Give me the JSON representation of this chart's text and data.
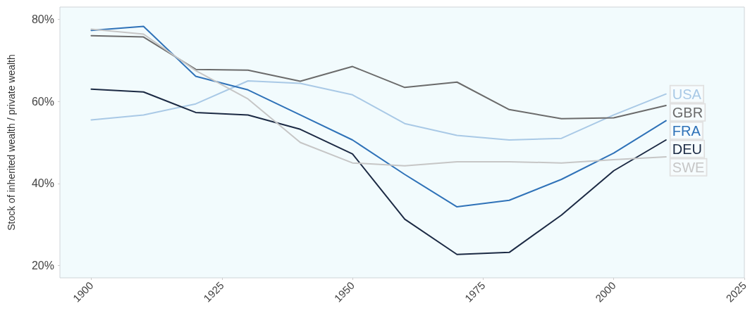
{
  "chart_data": {
    "type": "line",
    "ylabel": "Stock of inherited wealth / private wealth",
    "x": [
      1900,
      1910,
      1920,
      1930,
      1940,
      1950,
      1960,
      1970,
      1980,
      1990,
      2000,
      2010
    ],
    "series": [
      {
        "name": "USA",
        "color": "#a9c9e6",
        "values": [
          55.5,
          56.7,
          59.4,
          65,
          64.4,
          61.6,
          54.6,
          51.7,
          50.6,
          51,
          56.7,
          61.8
        ]
      },
      {
        "name": "GBR",
        "color": "#6b6b6b",
        "values": [
          76,
          75.7,
          67.8,
          67.6,
          64.9,
          68.5,
          63.4,
          64.7,
          58,
          55.8,
          56,
          59
        ]
      },
      {
        "name": "FRA",
        "color": "#2f72b8",
        "values": [
          77.3,
          78.3,
          66.1,
          62.8,
          56.7,
          50.6,
          42.2,
          34.3,
          35.9,
          41,
          47.4,
          55.3
        ]
      },
      {
        "name": "DEU",
        "color": "#1c2a44",
        "values": [
          63,
          62.3,
          57.3,
          56.7,
          53.2,
          47.2,
          31.3,
          22.7,
          23.2,
          32.3,
          43.1,
          50.6
        ]
      },
      {
        "name": "SWE",
        "color": "#c6c6c6",
        "values": [
          77.6,
          76.4,
          67.5,
          60.6,
          50,
          45,
          44.3,
          45.3,
          45.3,
          45,
          45.8,
          46.5
        ]
      }
    ],
    "xlim": [
      1894,
      2025
    ],
    "xticks": [
      1900,
      1925,
      1950,
      1975,
      2000,
      2025
    ],
    "ylim": [
      17,
      83
    ],
    "yticks": [
      {
        "value": 20,
        "label": "20%"
      },
      {
        "value": 40,
        "label": "40%"
      },
      {
        "value": 60,
        "label": "60%"
      },
      {
        "value": 80,
        "label": "80%"
      }
    ],
    "grid": false,
    "legend": false,
    "marker": "none",
    "line_style": "solid"
  }
}
